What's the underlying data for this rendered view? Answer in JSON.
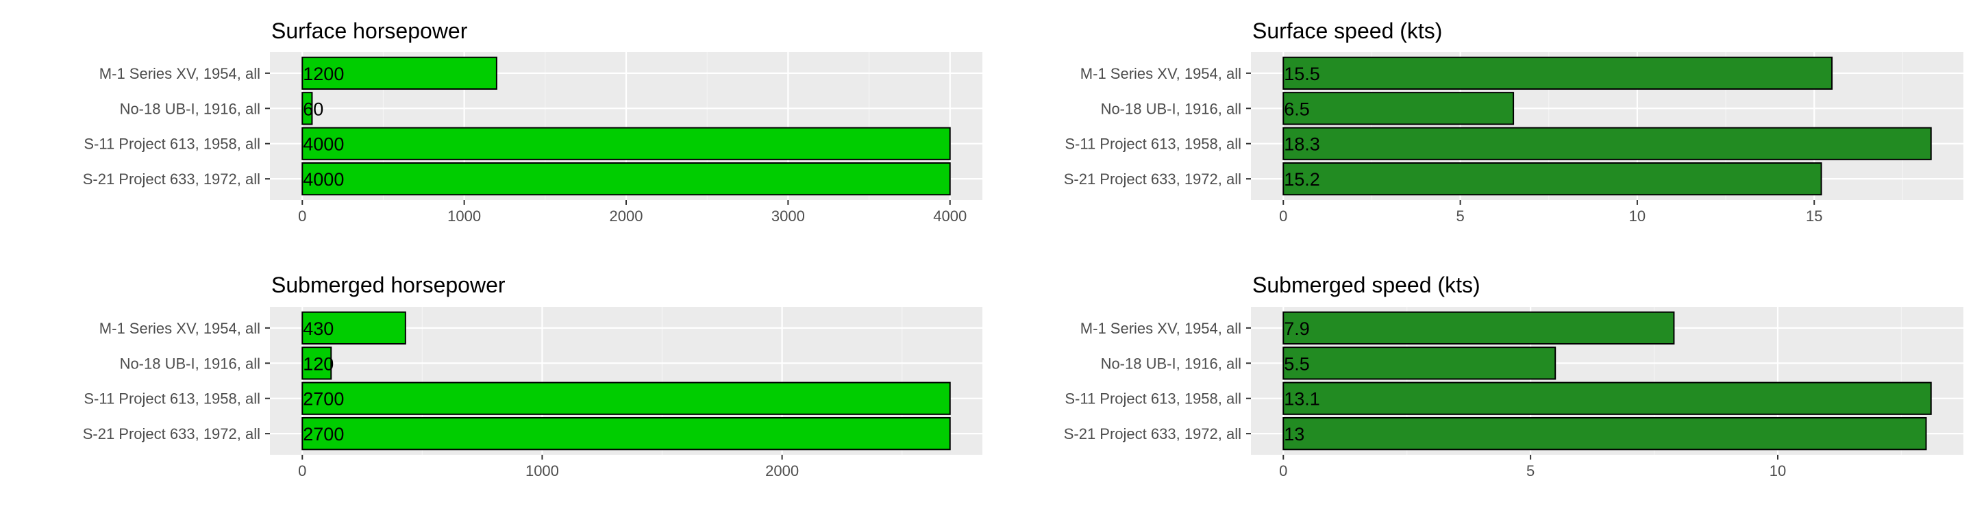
{
  "chart_data": [
    {
      "type": "bar",
      "orientation": "horizontal",
      "title": "Surface horsepower",
      "categories": [
        "M-1 Series XV, 1954, all",
        "No-18 UB-I, 1916, all",
        "S-11 Project 613, 1958, all",
        "S-21 Project 633, 1972, all"
      ],
      "values": [
        1200,
        60,
        4000,
        4000
      ],
      "data_labels": [
        "1200",
        "60",
        "4000",
        "4000"
      ],
      "xlim": [
        0,
        4000
      ],
      "ticks": [
        0,
        1000,
        2000,
        3000,
        4000
      ],
      "tick_labels": [
        "0",
        "1000",
        "2000",
        "3000",
        "4000"
      ],
      "bar_color": "#00cd00",
      "grid": true
    },
    {
      "type": "bar",
      "orientation": "horizontal",
      "title": "Surface speed (kts)",
      "categories": [
        "M-1 Series XV, 1954, all",
        "No-18 UB-I, 1916, all",
        "S-11 Project 613, 1958, all",
        "S-21 Project 633, 1972, all"
      ],
      "values": [
        15.5,
        6.5,
        18.3,
        15.2
      ],
      "data_labels": [
        "15.5",
        "6.5",
        "18.3",
        "15.2"
      ],
      "xlim": [
        0,
        18.3
      ],
      "ticks": [
        0,
        5,
        10,
        15
      ],
      "tick_labels": [
        "0",
        "5",
        "10",
        "15"
      ],
      "bar_color": "#228b22",
      "grid": true
    },
    {
      "type": "bar",
      "orientation": "horizontal",
      "title": "Submerged horsepower",
      "categories": [
        "M-1 Series XV, 1954, all",
        "No-18 UB-I, 1916, all",
        "S-11 Project 613, 1958, all",
        "S-21 Project 633, 1972, all"
      ],
      "values": [
        430,
        120,
        2700,
        2700
      ],
      "data_labels": [
        "430",
        "120",
        "2700",
        "2700"
      ],
      "xlim": [
        0,
        2700
      ],
      "ticks": [
        0,
        1000,
        2000
      ],
      "tick_labels": [
        "0",
        "1000",
        "2000"
      ],
      "bar_color": "#00cd00",
      "grid": true
    },
    {
      "type": "bar",
      "orientation": "horizontal",
      "title": "Submerged speed (kts)",
      "categories": [
        "M-1 Series XV, 1954, all",
        "No-18 UB-I, 1916, all",
        "S-11 Project 613, 1958, all",
        "S-21 Project 633, 1972, all"
      ],
      "values": [
        7.9,
        5.5,
        13.1,
        13
      ],
      "data_labels": [
        "7.9",
        "5.5",
        "13.1",
        "13"
      ],
      "xlim": [
        0,
        13.1
      ],
      "ticks": [
        0,
        5,
        10
      ],
      "tick_labels": [
        "0",
        "5",
        "10"
      ],
      "bar_color": "#228b22",
      "grid": true
    }
  ]
}
